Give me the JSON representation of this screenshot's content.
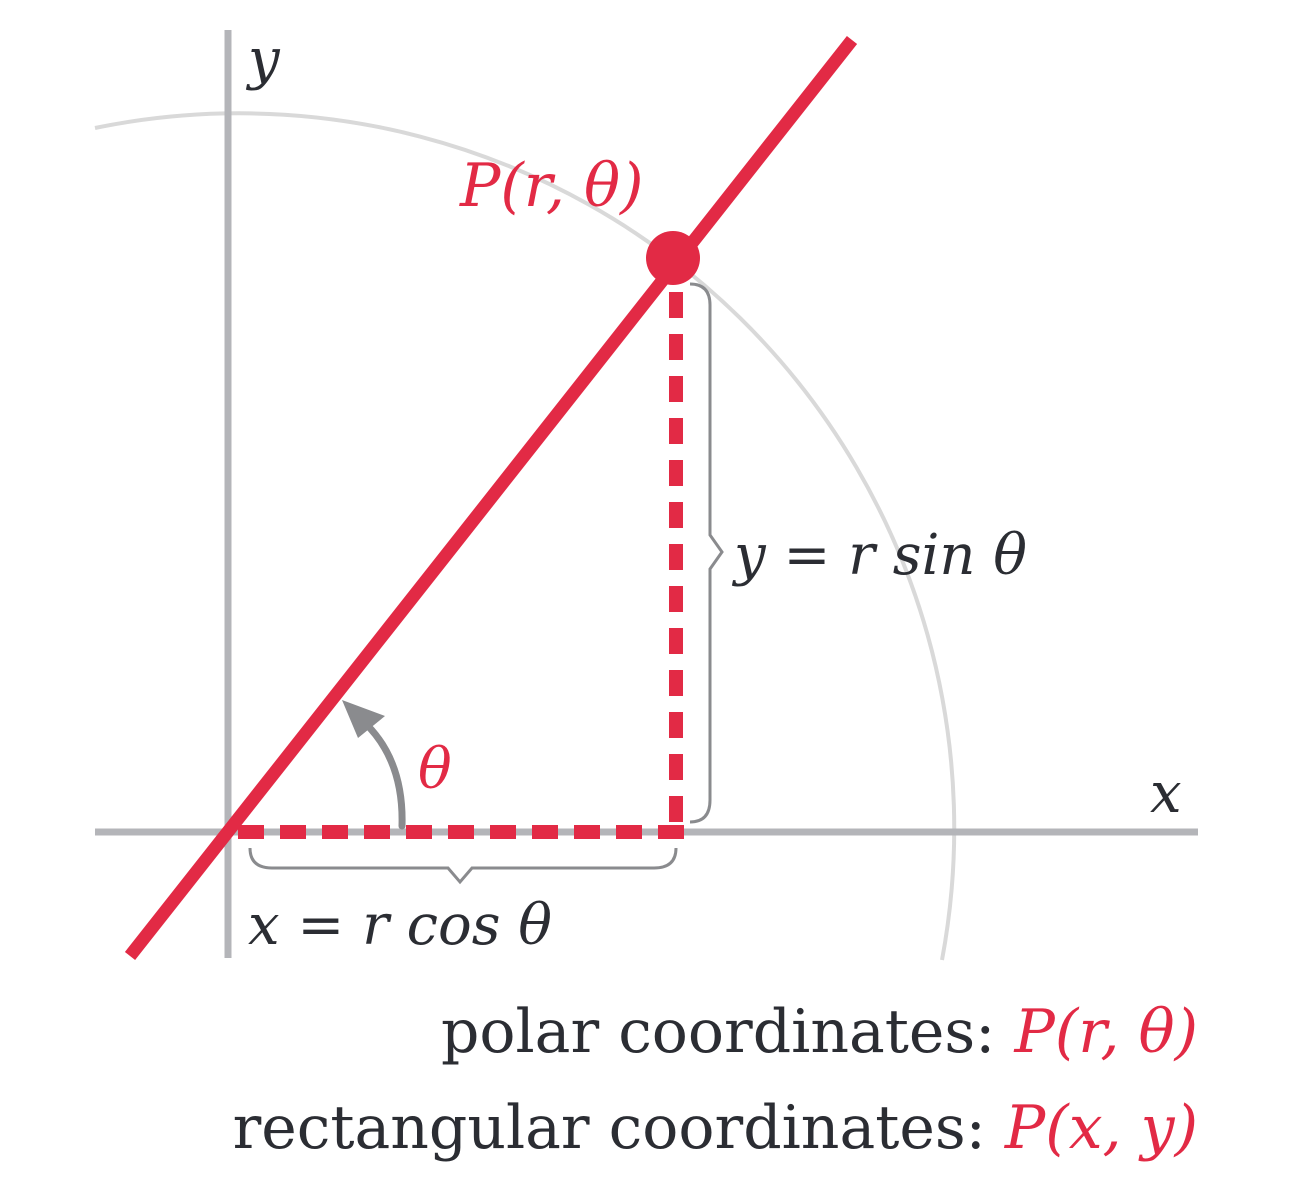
{
  "colors": {
    "accent": "#e22a45",
    "axis": "#b4b5b9",
    "circle": "#d9d9d9",
    "text": "#2b2d33",
    "arrow": "#8a8b8e"
  },
  "axes": {
    "x_label": "x",
    "y_label": "y"
  },
  "point": {
    "label": "P(r, θ)"
  },
  "angle": {
    "label": "θ"
  },
  "equations": {
    "y_eq": "y = r sin θ",
    "x_eq": "x = r cos θ"
  },
  "caption": {
    "polar_prefix": "polar coordinates: ",
    "polar_value": "P(r, θ)",
    "rect_prefix": "rectangular coordinates: ",
    "rect_value": "P(x, y)"
  }
}
